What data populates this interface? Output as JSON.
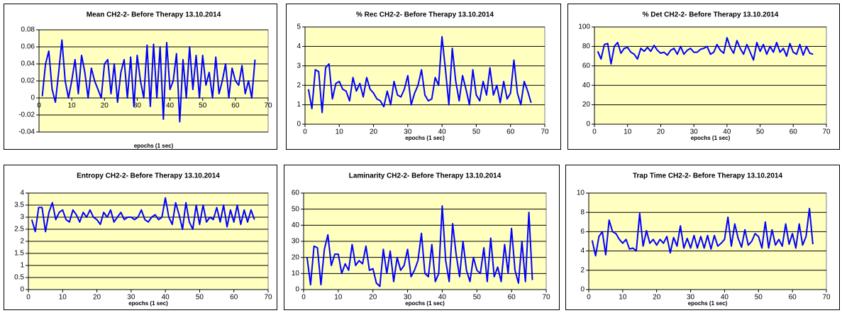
{
  "chart_data": [
    {
      "type": "line",
      "title": "Mean CH2-2- Before Therapy 13.10.2014",
      "xlabel": "epochs (1 sec)",
      "color": "#0000ff",
      "grid": true,
      "xlim": [
        0,
        70
      ],
      "xticks": [
        0,
        10,
        20,
        30,
        40,
        50,
        60,
        70
      ],
      "ylim": [
        -0.04,
        0.08
      ],
      "yticks": [
        -0.04,
        -0.02,
        0,
        0.02,
        0.04,
        0.06,
        0.08
      ],
      "x": [
        1,
        2,
        3,
        4,
        5,
        6,
        7,
        8,
        9,
        10,
        11,
        12,
        13,
        14,
        15,
        16,
        17,
        18,
        19,
        20,
        21,
        22,
        23,
        24,
        25,
        26,
        27,
        28,
        29,
        30,
        31,
        32,
        33,
        34,
        35,
        36,
        37,
        38,
        39,
        40,
        41,
        42,
        43,
        44,
        45,
        46,
        47,
        48,
        49,
        50,
        51,
        52,
        53,
        54,
        55,
        56,
        57,
        58,
        59,
        60,
        61,
        62,
        63,
        64,
        65,
        66
      ],
      "values": [
        0.002,
        0.04,
        0.055,
        0.01,
        -0.005,
        0.03,
        0.068,
        0.02,
        0.0,
        0.02,
        0.045,
        0.005,
        0.05,
        0.03,
        0.0,
        0.035,
        0.02,
        0.01,
        0.0,
        0.04,
        0.045,
        0.005,
        0.04,
        -0.005,
        0.03,
        0.045,
        0.0,
        0.048,
        -0.01,
        0.05,
        0.02,
        0.0,
        0.062,
        -0.01,
        0.063,
        0.0,
        0.06,
        -0.025,
        0.065,
        0.01,
        0.02,
        0.052,
        -0.028,
        0.045,
        0.0,
        0.06,
        0.01,
        0.05,
        0.0,
        0.05,
        0.015,
        0.03,
        0.0,
        0.048,
        0.005,
        0.02,
        0.04,
        0.0,
        0.035,
        0.02,
        0.015,
        0.038,
        0.005,
        0.02,
        0.0,
        0.045
      ]
    },
    {
      "type": "line",
      "title": "% Rec CH2-2- Before Therapy 13.10.2014",
      "xlabel": "epochs (1 sec)",
      "color": "#0000ff",
      "grid": true,
      "xlim": [
        0,
        70
      ],
      "xticks": [
        0,
        10,
        20,
        30,
        40,
        50,
        60,
        70
      ],
      "ylim": [
        0,
        5
      ],
      "yticks": [
        0,
        1,
        2,
        3,
        4,
        5
      ],
      "x": [
        1,
        2,
        3,
        4,
        5,
        6,
        7,
        8,
        9,
        10,
        11,
        12,
        13,
        14,
        15,
        16,
        17,
        18,
        19,
        20,
        21,
        22,
        23,
        24,
        25,
        26,
        27,
        28,
        29,
        30,
        31,
        32,
        33,
        34,
        35,
        36,
        37,
        38,
        39,
        40,
        41,
        42,
        43,
        44,
        45,
        46,
        47,
        48,
        49,
        50,
        51,
        52,
        53,
        54,
        55,
        56,
        57,
        58,
        59,
        60,
        61,
        62,
        63,
        64,
        65,
        66
      ],
      "values": [
        1.8,
        0.8,
        2.8,
        2.7,
        0.6,
        2.9,
        3.1,
        1.3,
        2.1,
        2.2,
        1.8,
        1.7,
        1.2,
        2.4,
        1.7,
        2.1,
        1.4,
        2.4,
        1.8,
        1.6,
        1.3,
        1.2,
        0.9,
        1.7,
        1.0,
        2.2,
        1.5,
        1.4,
        1.8,
        2.5,
        1.0,
        1.6,
        2.0,
        2.8,
        1.5,
        1.2,
        1.3,
        2.4,
        2.0,
        4.5,
        2.8,
        1.0,
        3.9,
        2.2,
        1.2,
        2.5,
        1.8,
        1.0,
        2.8,
        1.5,
        1.2,
        2.2,
        1.5,
        2.9,
        1.5,
        2.0,
        1.1,
        2.2,
        1.3,
        1.6,
        3.3,
        1.6,
        1.0,
        2.2,
        1.7,
        1.1
      ]
    },
    {
      "type": "line",
      "title": "% Det CH2-2- Before Therapy 13.10.2014",
      "xlabel": "epochs (1 sec)",
      "color": "#0000ff",
      "grid": true,
      "xlim": [
        0,
        70
      ],
      "xticks": [
        0,
        10,
        20,
        30,
        40,
        50,
        60,
        70
      ],
      "ylim": [
        0,
        100
      ],
      "yticks": [
        0,
        20,
        40,
        60,
        80,
        100
      ],
      "x": [
        1,
        2,
        3,
        4,
        5,
        6,
        7,
        8,
        9,
        10,
        11,
        12,
        13,
        14,
        15,
        16,
        17,
        18,
        19,
        20,
        21,
        22,
        23,
        24,
        25,
        26,
        27,
        28,
        29,
        30,
        31,
        32,
        33,
        34,
        35,
        36,
        37,
        38,
        39,
        40,
        41,
        42,
        43,
        44,
        45,
        46,
        47,
        48,
        49,
        50,
        51,
        52,
        53,
        54,
        55,
        56,
        57,
        58,
        59,
        60,
        61,
        62,
        63,
        64,
        65,
        66
      ],
      "values": [
        75,
        67,
        82,
        83,
        62,
        80,
        84,
        73,
        78,
        79,
        74,
        72,
        67,
        78,
        75,
        79,
        75,
        81,
        76,
        73,
        74,
        71,
        76,
        78,
        72,
        80,
        72,
        76,
        78,
        74,
        74,
        77,
        78,
        80,
        72,
        74,
        82,
        76,
        73,
        89,
        79,
        73,
        86,
        78,
        72,
        82,
        74,
        66,
        84,
        75,
        82,
        72,
        80,
        74,
        84,
        74,
        78,
        70,
        83,
        74,
        72,
        82,
        71,
        80,
        73,
        72
      ]
    },
    {
      "type": "line",
      "title": "Entropy CH2-2- Before Therapy 13.10.2014",
      "xlabel": "epochs (1 sec)",
      "color": "#0000ff",
      "grid": true,
      "xlim": [
        0,
        70
      ],
      "xticks": [
        0,
        10,
        20,
        30,
        40,
        50,
        60,
        70
      ],
      "ylim": [
        0,
        4
      ],
      "yticks": [
        0,
        0.5,
        1,
        1.5,
        2,
        2.5,
        3,
        3.5,
        4
      ],
      "x": [
        1,
        2,
        3,
        4,
        5,
        6,
        7,
        8,
        9,
        10,
        11,
        12,
        13,
        14,
        15,
        16,
        17,
        18,
        19,
        20,
        21,
        22,
        23,
        24,
        25,
        26,
        27,
        28,
        29,
        30,
        31,
        32,
        33,
        34,
        35,
        36,
        37,
        38,
        39,
        40,
        41,
        42,
        43,
        44,
        45,
        46,
        47,
        48,
        49,
        50,
        51,
        52,
        53,
        54,
        55,
        56,
        57,
        58,
        59,
        60,
        61,
        62,
        63,
        64,
        65,
        66
      ],
      "values": [
        2.9,
        2.4,
        3.4,
        3.4,
        2.4,
        3.2,
        3.6,
        2.9,
        3.2,
        3.3,
        2.9,
        2.8,
        3.3,
        3.1,
        2.8,
        3.2,
        3.0,
        3.3,
        3.0,
        2.9,
        2.7,
        3.2,
        3.0,
        3.3,
        2.8,
        3.0,
        3.2,
        2.9,
        3.0,
        3.0,
        2.9,
        3.0,
        3.3,
        2.9,
        2.8,
        3.0,
        3.1,
        2.9,
        3.0,
        3.8,
        3.0,
        2.7,
        3.6,
        3.1,
        2.5,
        3.6,
        2.8,
        2.5,
        3.5,
        2.7,
        3.5,
        2.8,
        3.0,
        2.9,
        3.4,
        2.8,
        3.5,
        2.6,
        3.3,
        2.8,
        3.5,
        2.7,
        3.3,
        2.8,
        3.3,
        2.9
      ]
    },
    {
      "type": "line",
      "title": "Laminarity CH2-2- Before Therapy 13.10.2014",
      "xlabel": "epochs (1 sec)",
      "color": "#0000ff",
      "grid": true,
      "xlim": [
        0,
        70
      ],
      "xticks": [
        0,
        10,
        20,
        30,
        40,
        50,
        60,
        70
      ],
      "ylim": [
        0,
        60
      ],
      "yticks": [
        0,
        10,
        20,
        30,
        40,
        50,
        60
      ],
      "x": [
        1,
        2,
        3,
        4,
        5,
        6,
        7,
        8,
        9,
        10,
        11,
        12,
        13,
        14,
        15,
        16,
        17,
        18,
        19,
        20,
        21,
        22,
        23,
        24,
        25,
        26,
        27,
        28,
        29,
        30,
        31,
        32,
        33,
        34,
        35,
        36,
        37,
        38,
        39,
        40,
        41,
        42,
        43,
        44,
        45,
        46,
        47,
        48,
        49,
        50,
        51,
        52,
        53,
        54,
        55,
        56,
        57,
        58,
        59,
        60,
        61,
        62,
        63,
        64,
        65,
        66
      ],
      "values": [
        20,
        3,
        27,
        26,
        3,
        25,
        34,
        15,
        22,
        22,
        10,
        16,
        12,
        28,
        15,
        18,
        16,
        27,
        12,
        13,
        4,
        2,
        25,
        10,
        24,
        5,
        20,
        12,
        15,
        25,
        8,
        12,
        18,
        35,
        10,
        8,
        28,
        5,
        10,
        52,
        18,
        5,
        41,
        22,
        8,
        30,
        12,
        5,
        20,
        12,
        10,
        26,
        5,
        32,
        8,
        14,
        5,
        28,
        10,
        38,
        12,
        4,
        30,
        5,
        48,
        6
      ]
    },
    {
      "type": "line",
      "title": "Trap Time CH2-2- Before Therapy 13.10.2014",
      "xlabel": "epochs (1 sec)",
      "color": "#0000ff",
      "grid": true,
      "xlim": [
        0,
        70
      ],
      "xticks": [
        0,
        10,
        20,
        30,
        40,
        50,
        60,
        70
      ],
      "ylim": [
        0,
        10
      ],
      "yticks": [
        0,
        2,
        4,
        6,
        8,
        10
      ],
      "x": [
        1,
        2,
        3,
        4,
        5,
        6,
        7,
        8,
        9,
        10,
        11,
        12,
        13,
        14,
        15,
        16,
        17,
        18,
        19,
        20,
        21,
        22,
        23,
        24,
        25,
        26,
        27,
        28,
        29,
        30,
        31,
        32,
        33,
        34,
        35,
        36,
        37,
        38,
        39,
        40,
        41,
        42,
        43,
        44,
        45,
        46,
        47,
        48,
        49,
        50,
        51,
        52,
        53,
        54,
        55,
        56,
        57,
        58,
        59,
        60,
        61,
        62,
        63,
        64,
        65,
        66
      ],
      "values": [
        5.1,
        3.5,
        5.5,
        6.0,
        3.6,
        7.2,
        6.0,
        5.8,
        5.2,
        4.8,
        5.2,
        4.2,
        4.3,
        4.0,
        7.9,
        4.5,
        6.1,
        4.8,
        5.2,
        4.6,
        5.2,
        4.8,
        5.5,
        3.8,
        5.4,
        4.5,
        6.6,
        4.3,
        5.3,
        4.3,
        5.6,
        4.3,
        5.5,
        4.3,
        5.6,
        4.2,
        5.6,
        4.5,
        4.8,
        5.2,
        7.5,
        4.5,
        6.8,
        5.3,
        4.4,
        6.2,
        4.6,
        5.0,
        5.8,
        5.5,
        4.3,
        7.0,
        4.3,
        6.2,
        4.6,
        5.2,
        4.5,
        6.8,
        4.7,
        5.8,
        4.3,
        6.8,
        4.6,
        5.5,
        8.4,
        4.7
      ]
    }
  ]
}
